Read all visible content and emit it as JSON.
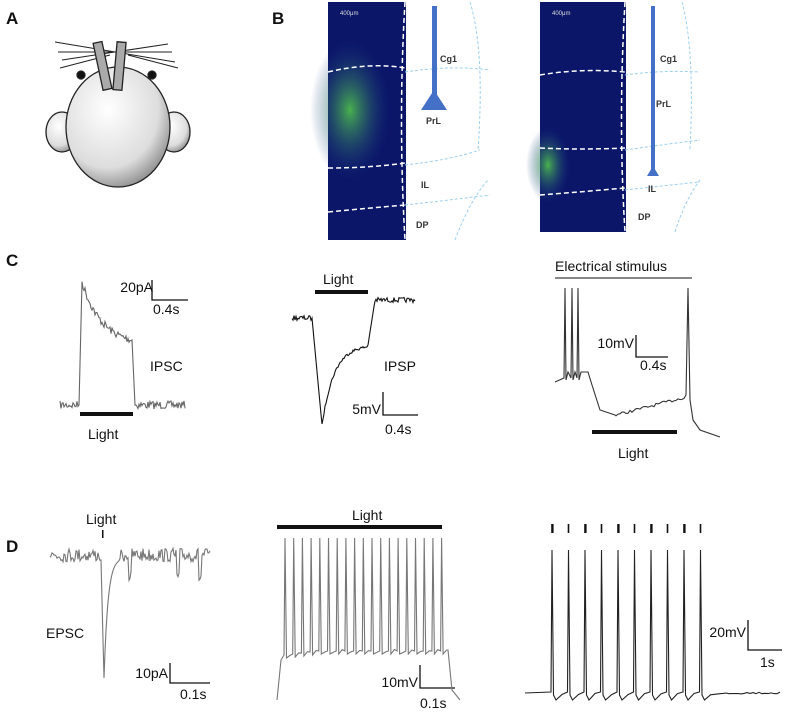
{
  "panels": {
    "A": {
      "label": "A"
    },
    "B": {
      "label": "B",
      "sections": [
        {
          "scale_bar": "400μm",
          "regions": [
            "Cg1",
            "PrL",
            "IL",
            "DP"
          ]
        },
        {
          "scale_bar": "400μm",
          "regions": [
            "Cg1",
            "PrL",
            "IL",
            "DP"
          ]
        }
      ]
    },
    "C": {
      "label": "C",
      "ipsc": {
        "y_scale": "20pA",
        "x_scale": "0.4s",
        "name": "IPSC",
        "stimulus": "Light"
      },
      "ipsp": {
        "stimulus": "Light",
        "name": "IPSP",
        "y_scale": "5mV",
        "x_scale": "0.4s"
      },
      "electrical": {
        "title": "Electrical stimulus",
        "y_scale": "10mV",
        "x_scale": "0.4s",
        "stimulus": "Light"
      }
    },
    "D": {
      "label": "D",
      "epsc": {
        "stimulus": "Light",
        "name": "EPSC",
        "y_scale": "10pA",
        "x_scale": "0.1s"
      },
      "train": {
        "stimulus": "Light",
        "y_scale": "10mV",
        "x_scale": "0.1s"
      },
      "long_train": {
        "y_scale": "20mV",
        "x_scale": "1s"
      }
    }
  }
}
